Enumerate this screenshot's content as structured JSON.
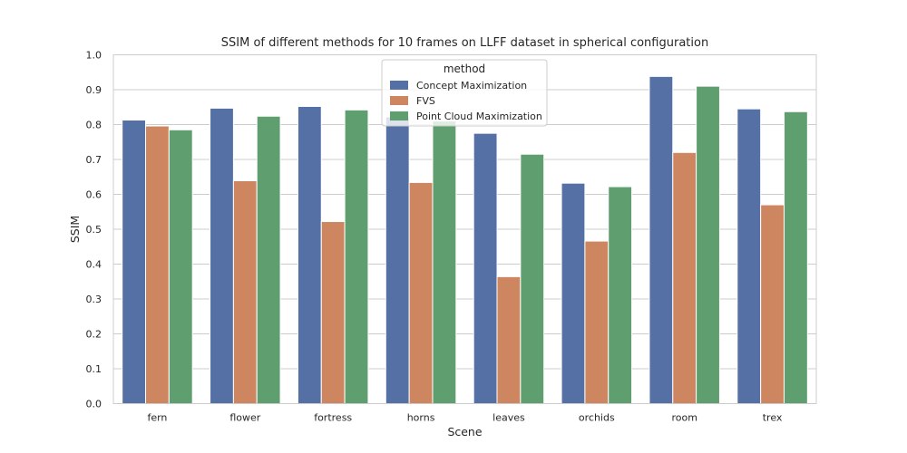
{
  "chart_data": {
    "type": "bar",
    "title": "SSIM of different methods for 10 frames on LLFF dataset in spherical configuration",
    "xlabel": "Scene",
    "ylabel": "SSIM",
    "ylim": [
      0,
      1.0
    ],
    "yticks": [
      "0.0",
      "0.1",
      "0.2",
      "0.3",
      "0.4",
      "0.5",
      "0.6",
      "0.7",
      "0.8",
      "0.9",
      "1.0"
    ],
    "grid": true,
    "legend_title": "method",
    "legend_position": "upper-center",
    "categories": [
      "fern",
      "flower",
      "fortress",
      "horns",
      "leaves",
      "orchids",
      "room",
      "trex"
    ],
    "series": [
      {
        "name": "Concept Maximization",
        "color": "#5470a5",
        "values": [
          0.813,
          0.847,
          0.852,
          0.822,
          0.775,
          0.632,
          0.938,
          0.845
        ]
      },
      {
        "name": "FVS",
        "color": "#cd8660",
        "values": [
          0.796,
          0.639,
          0.522,
          0.634,
          0.364,
          0.466,
          0.72,
          0.57
        ]
      },
      {
        "name": "Point Cloud Maximization",
        "color": "#5f9e6e",
        "values": [
          0.785,
          0.824,
          0.842,
          0.81,
          0.715,
          0.622,
          0.91,
          0.837
        ]
      }
    ]
  }
}
